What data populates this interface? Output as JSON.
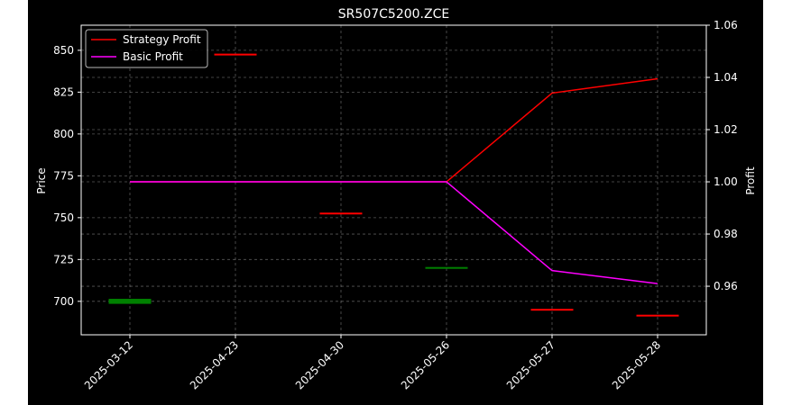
{
  "chart_data": {
    "type": "line",
    "title": "SR507C5200.ZCE",
    "categories": [
      "2025-03-12",
      "2025-04-23",
      "2025-04-30",
      "2025-05-26",
      "2025-05-27",
      "2025-05-28"
    ],
    "left_axis": {
      "label": "Price",
      "ylim": [
        680,
        865
      ],
      "ticks": [
        700,
        725,
        750,
        775,
        800,
        825,
        850
      ]
    },
    "right_axis": {
      "label": "Profit",
      "ylim": [
        0.9414,
        1.06
      ],
      "ticks": [
        "0.96",
        "0.98",
        "1.00",
        "1.02",
        "1.04",
        "1.06"
      ]
    },
    "grid": true,
    "legend_position": "top-left",
    "candles": [
      {
        "date": "2025-03-12",
        "open": 701.5,
        "close": 698.5,
        "color": "#008000"
      },
      {
        "date": "2025-04-23",
        "open": 848,
        "close": 847.5,
        "color": "#ff0000"
      },
      {
        "date": "2025-04-30",
        "open": 753,
        "close": 752.5,
        "color": "#ff0000"
      },
      {
        "date": "2025-05-26",
        "open": 720.5,
        "close": 719.5,
        "color": "#008000"
      },
      {
        "date": "2025-05-27",
        "open": 695.5,
        "close": 695,
        "color": "#ff0000"
      },
      {
        "date": "2025-05-28",
        "open": 692,
        "close": 691.5,
        "color": "#ff0000"
      }
    ],
    "series": [
      {
        "name": "Strategy Profit",
        "color": "#ff0000",
        "axis": "right",
        "x": [
          "2025-03-12",
          "2025-04-23",
          "2025-04-30",
          "2025-05-26",
          "2025-05-27",
          "2025-05-28"
        ],
        "values": [
          1.0,
          1.0,
          1.0,
          1.0,
          1.034,
          1.0395
        ]
      },
      {
        "name": "Basic Profit",
        "color": "#ff00ff",
        "axis": "right",
        "x": [
          "2025-03-12",
          "2025-04-23",
          "2025-04-30",
          "2025-05-26",
          "2025-05-27",
          "2025-05-28"
        ],
        "values": [
          1.0,
          1.0,
          1.0,
          1.0,
          0.966,
          0.961
        ]
      }
    ]
  }
}
